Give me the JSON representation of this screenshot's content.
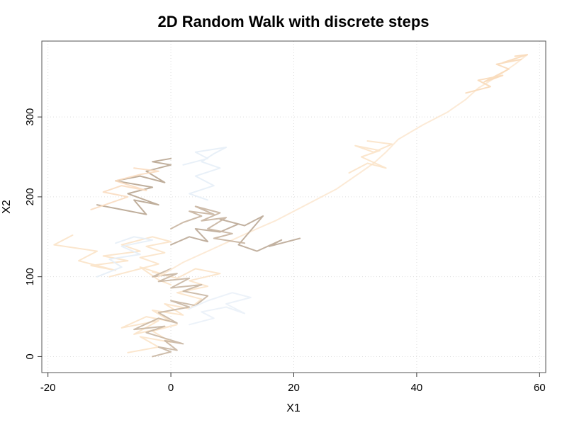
{
  "chart_data": {
    "type": "line",
    "title": "2D Random Walk with discrete steps",
    "xlabel": "X1",
    "ylabel": "X2",
    "xlim": [
      -21,
      61
    ],
    "ylim": [
      -20,
      395
    ],
    "x_ticks": [
      -20,
      0,
      20,
      40,
      60
    ],
    "y_ticks": [
      0,
      100,
      200,
      300
    ],
    "grid": true,
    "legend": "none",
    "series": [
      {
        "color": "#fbe3c8",
        "x": [
          -7,
          -2,
          -5,
          0,
          -3,
          1,
          -6,
          -2,
          -8,
          -4,
          0,
          -3,
          2,
          -1,
          3,
          5,
          1,
          6,
          3,
          8,
          4,
          1,
          -3,
          0,
          -5,
          -2,
          0
        ],
        "y": [
          5,
          12,
          25,
          18,
          32,
          40,
          28,
          45,
          36,
          50,
          44,
          58,
          52,
          66,
          60,
          72,
          80,
          88,
          95,
          104,
          110,
          98,
          106,
          100,
          112,
          96,
          90
        ]
      },
      {
        "color": "#c9b6a2",
        "x": [
          -3,
          0,
          -2,
          1,
          -1,
          2,
          -4,
          -1,
          -6,
          -2,
          1,
          -2,
          3,
          0,
          4,
          6,
          2,
          5,
          0,
          3,
          -2,
          1,
          -3,
          0
        ],
        "y": [
          0,
          6,
          12,
          8,
          20,
          16,
          30,
          38,
          34,
          48,
          42,
          55,
          62,
          70,
          64,
          76,
          82,
          90,
          86,
          98,
          94,
          104,
          100,
          110
        ]
      },
      {
        "color": "#fce8d2",
        "x": [
          -2,
          2,
          6,
          10,
          14,
          17,
          20,
          23,
          27,
          30,
          33,
          35,
          37,
          41,
          45,
          48,
          50,
          53,
          56,
          58
        ],
        "y": [
          100,
          118,
          132,
          146,
          160,
          170,
          182,
          194,
          210,
          226,
          242,
          256,
          272,
          290,
          306,
          322,
          336,
          350,
          366,
          378
        ]
      },
      {
        "color": "#fbe3c8",
        "x": [
          29,
          32,
          35,
          31,
          34,
          30,
          33,
          36,
          32
        ],
        "y": [
          230,
          242,
          236,
          250,
          258,
          264,
          256,
          266,
          270
        ]
      },
      {
        "color": "#f8d9b8",
        "x": [
          48,
          52,
          50,
          54,
          51,
          55,
          53,
          57,
          54,
          58,
          56
        ],
        "y": [
          330,
          338,
          346,
          352,
          344,
          360,
          366,
          372,
          368,
          378,
          376
        ]
      },
      {
        "color": "#bba896",
        "x": [
          0,
          3,
          6,
          4,
          8,
          11,
          8,
          12,
          15,
          11,
          14,
          18,
          16,
          21
        ],
        "y": [
          140,
          150,
          144,
          160,
          156,
          166,
          172,
          164,
          176,
          140,
          132,
          146,
          138,
          148
        ]
      },
      {
        "color": "#c8b4a0",
        "x": [
          0,
          2,
          5,
          3,
          7,
          4,
          8,
          5,
          9,
          6,
          10,
          7,
          12
        ],
        "y": [
          160,
          168,
          176,
          182,
          178,
          188,
          180,
          170,
          174,
          160,
          154,
          148,
          142
        ]
      },
      {
        "color": "#fbe3c8",
        "x": [
          -10,
          -6,
          -2,
          -5,
          -1,
          -4,
          0,
          -3,
          -8,
          -5,
          -11,
          -7,
          -13,
          -9,
          -15,
          -12,
          -19,
          -16
        ],
        "y": [
          100,
          108,
          116,
          124,
          130,
          138,
          144,
          150,
          140,
          132,
          126,
          120,
          114,
          108,
          120,
          132,
          140,
          152
        ]
      },
      {
        "color": "#b8a590",
        "x": [
          -12,
          -8,
          -4,
          -6,
          -2,
          -7,
          -3,
          -9,
          -5,
          -1,
          -4,
          0,
          -3,
          0
        ],
        "y": [
          190,
          184,
          178,
          196,
          190,
          204,
          212,
          220,
          226,
          218,
          232,
          240,
          244,
          248
        ]
      },
      {
        "color": "#f9dcc0",
        "x": [
          -13,
          -10,
          -7,
          -11,
          -8,
          -4,
          -9,
          -5,
          -2,
          -6
        ],
        "y": [
          184,
          192,
          200,
          206,
          214,
          208,
          220,
          228,
          232,
          236
        ]
      },
      {
        "color": "#e6eef7",
        "x": [
          2,
          6,
          4,
          9,
          7,
          5,
          8,
          4,
          7,
          3,
          6
        ],
        "y": [
          240,
          248,
          256,
          262,
          254,
          244,
          236,
          226,
          214,
          204,
          196
        ]
      },
      {
        "color": "#e6eef7",
        "x": [
          -12,
          -8,
          -10,
          -5,
          -8,
          -3,
          -6,
          -9
        ],
        "y": [
          100,
          112,
          122,
          128,
          138,
          146,
          150,
          142
        ]
      },
      {
        "color": "#eaf1f8",
        "x": [
          3,
          7,
          5,
          9,
          12,
          9,
          13,
          10,
          6,
          3
        ],
        "y": [
          40,
          48,
          56,
          62,
          54,
          66,
          74,
          80,
          70,
          60
        ]
      }
    ]
  }
}
